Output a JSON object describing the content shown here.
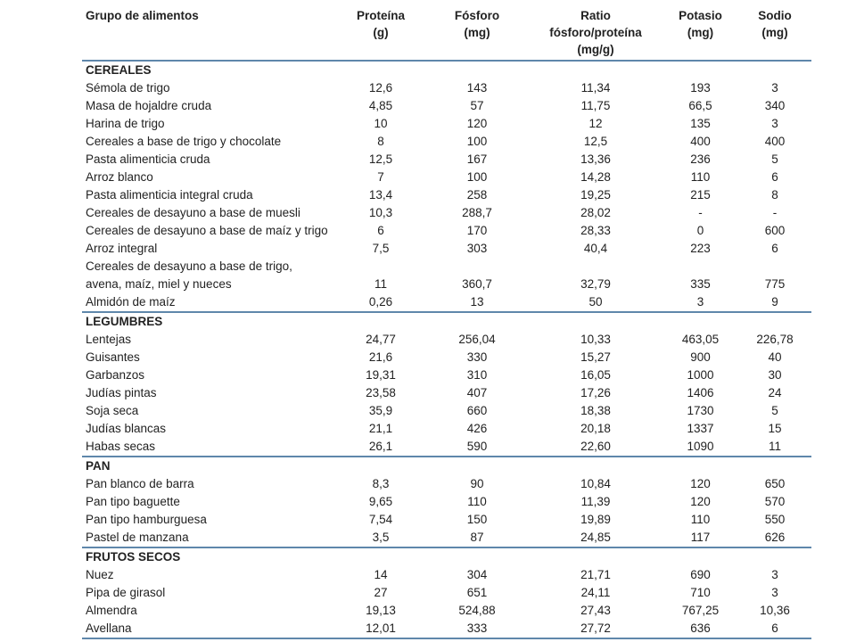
{
  "headers": {
    "group": [
      "Grupo de alimentos"
    ],
    "protein": [
      "Proteína",
      "(g)"
    ],
    "phosphorus": [
      "Fósforo",
      "(mg)"
    ],
    "ratio": [
      "Ratio",
      "fósforo/proteína",
      "(mg/g)"
    ],
    "potassium": [
      "Potasio",
      "(mg)"
    ],
    "sodium": [
      "Sodio",
      "(mg)"
    ]
  },
  "sections": [
    {
      "title": "CEREALES",
      "rows": [
        {
          "name": [
            "Sémola de trigo"
          ],
          "protein": "12,6",
          "phosphorus": "143",
          "ratio": "11,34",
          "potassium": "193",
          "sodium": "3"
        },
        {
          "name": [
            "Masa de hojaldre cruda"
          ],
          "protein": "4,85",
          "phosphorus": "57",
          "ratio": "11,75",
          "potassium": "66,5",
          "sodium": "340"
        },
        {
          "name": [
            "Harina de trigo"
          ],
          "protein": "10",
          "phosphorus": "120",
          "ratio": "12",
          "potassium": "135",
          "sodium": "3"
        },
        {
          "name": [
            "Cereales a base de trigo y chocolate"
          ],
          "protein": "8",
          "phosphorus": "100",
          "ratio": "12,5",
          "potassium": "400",
          "sodium": "400"
        },
        {
          "name": [
            "Pasta alimenticia cruda"
          ],
          "protein": "12,5",
          "phosphorus": "167",
          "ratio": "13,36",
          "potassium": "236",
          "sodium": "5"
        },
        {
          "name": [
            "Arroz blanco"
          ],
          "protein": "7",
          "phosphorus": "100",
          "ratio": "14,28",
          "potassium": "110",
          "sodium": "6"
        },
        {
          "name": [
            "Pasta alimenticia integral cruda"
          ],
          "protein": "13,4",
          "phosphorus": "258",
          "ratio": "19,25",
          "potassium": "215",
          "sodium": "8"
        },
        {
          "name": [
            "Cereales de desayuno a base de muesli"
          ],
          "protein": "10,3",
          "phosphorus": "288,7",
          "ratio": "28,02",
          "potassium": "-",
          "sodium": "-"
        },
        {
          "name": [
            "Cereales de desayuno a base de maíz y trigo"
          ],
          "protein": "6",
          "phosphorus": "170",
          "ratio": "28,33",
          "potassium": "0",
          "sodium": "600"
        },
        {
          "name": [
            "Arroz integral"
          ],
          "protein": "7,5",
          "phosphorus": "303",
          "ratio": "40,4",
          "potassium": "223",
          "sodium": "6"
        },
        {
          "name": [
            "Cereales de desayuno a base de trigo,",
            "avena, maíz, miel y nueces"
          ],
          "protein": "11",
          "phosphorus": "360,7",
          "ratio": "32,79",
          "potassium": "335",
          "sodium": "775"
        },
        {
          "name": [
            "Almidón de maíz"
          ],
          "protein": "0,26",
          "phosphorus": "13",
          "ratio": "50",
          "potassium": "3",
          "sodium": "9"
        }
      ]
    },
    {
      "title": "LEGUMBRES",
      "rows": [
        {
          "name": [
            "Lentejas"
          ],
          "protein": "24,77",
          "phosphorus": "256,04",
          "ratio": "10,33",
          "potassium": "463,05",
          "sodium": "226,78"
        },
        {
          "name": [
            "Guisantes"
          ],
          "protein": "21,6",
          "phosphorus": "330",
          "ratio": "15,27",
          "potassium": "900",
          "sodium": "40"
        },
        {
          "name": [
            "Garbanzos"
          ],
          "protein": "19,31",
          "phosphorus": "310",
          "ratio": "16,05",
          "potassium": "1000",
          "sodium": "30"
        },
        {
          "name": [
            "Judías pintas"
          ],
          "protein": "23,58",
          "phosphorus": "407",
          "ratio": "17,26",
          "potassium": "1406",
          "sodium": "24"
        },
        {
          "name": [
            "Soja seca"
          ],
          "protein": "35,9",
          "phosphorus": "660",
          "ratio": "18,38",
          "potassium": "1730",
          "sodium": "5"
        },
        {
          "name": [
            "Judías blancas"
          ],
          "protein": "21,1",
          "phosphorus": "426",
          "ratio": "20,18",
          "potassium": "1337",
          "sodium": "15"
        },
        {
          "name": [
            "Habas secas"
          ],
          "protein": "26,1",
          "phosphorus": "590",
          "ratio": "22,60",
          "potassium": "1090",
          "sodium": "11"
        }
      ]
    },
    {
      "title": "PAN",
      "rows": [
        {
          "name": [
            "Pan blanco de barra"
          ],
          "protein": "8,3",
          "phosphorus": "90",
          "ratio": "10,84",
          "potassium": "120",
          "sodium": "650"
        },
        {
          "name": [
            "Pan tipo baguette"
          ],
          "protein": "9,65",
          "phosphorus": "110",
          "ratio": "11,39",
          "potassium": "120",
          "sodium": "570"
        },
        {
          "name": [
            "Pan tipo hamburguesa"
          ],
          "protein": "7,54",
          "phosphorus": "150",
          "ratio": "19,89",
          "potassium": "110",
          "sodium": "550"
        },
        {
          "name": [
            "Pastel de manzana"
          ],
          "protein": "3,5",
          "phosphorus": "87",
          "ratio": "24,85",
          "potassium": "117",
          "sodium": "626"
        }
      ]
    },
    {
      "title": "FRUTOS SECOS",
      "rows": [
        {
          "name": [
            "Nuez"
          ],
          "protein": "14",
          "phosphorus": "304",
          "ratio": "21,71",
          "potassium": "690",
          "sodium": "3"
        },
        {
          "name": [
            "Pipa de girasol"
          ],
          "protein": "27",
          "phosphorus": "651",
          "ratio": "24,11",
          "potassium": "710",
          "sodium": "3"
        },
        {
          "name": [
            "Almendra"
          ],
          "protein": "19,13",
          "phosphorus": "524,88",
          "ratio": "27,43",
          "potassium": "767,25",
          "sodium": "10,36"
        },
        {
          "name": [
            "Avellana"
          ],
          "protein": "12,01",
          "phosphorus": "333",
          "ratio": "27,72",
          "potassium": "636",
          "sodium": "6"
        }
      ]
    }
  ]
}
